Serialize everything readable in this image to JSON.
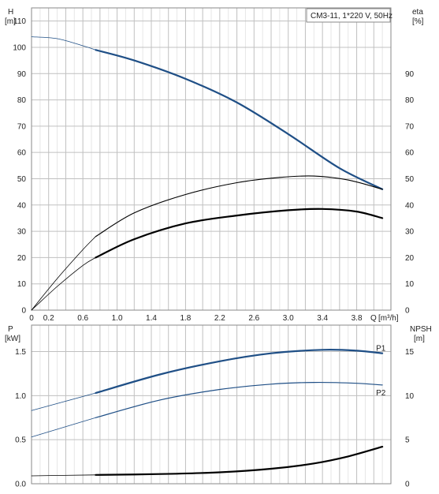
{
  "title_box": "CM3-11, 1*220 V, 50Hz",
  "colors": {
    "blue": "#1f4f86",
    "black": "#000000",
    "grid": "#c8c8c8",
    "frame": "#8a8a8a"
  },
  "chart_data": [
    {
      "type": "line",
      "name": "top",
      "left_axis": {
        "label_top": "H",
        "label_unit": "[m]",
        "ylim": [
          0,
          115
        ],
        "ticks": [
          0,
          10,
          20,
          30,
          40,
          50,
          60,
          70,
          80,
          90,
          100,
          110
        ]
      },
      "right_axis": {
        "label_top": "eta",
        "label_unit": "[%]",
        "ylim": [
          0,
          115
        ],
        "ticks": [
          0,
          10,
          20,
          30,
          40,
          50,
          60,
          70,
          80,
          90
        ]
      },
      "x_axis": {
        "label": "Q [m³/h]",
        "xlim": [
          0,
          4.2
        ],
        "ticks": [
          "0",
          "0.2",
          "0.6",
          "1.0",
          "1.4",
          "1.8",
          "2.2",
          "2.6",
          "3.0",
          "3.4",
          "3.8"
        ],
        "tick_values": [
          0,
          0.2,
          0.6,
          1.0,
          1.4,
          1.8,
          2.2,
          2.6,
          3.0,
          3.4,
          3.8
        ],
        "end_label": "Q"
      },
      "series": [
        {
          "id": "H-thin",
          "axis": "left",
          "x": [
            0,
            0.3,
            0.6,
            0.75
          ],
          "y": [
            104,
            103.3,
            100.6,
            99
          ]
        },
        {
          "id": "H",
          "axis": "left",
          "x": [
            0.75,
            1.2,
            1.8,
            2.4,
            3.0,
            3.6,
            4.1
          ],
          "y": [
            99,
            95,
            88,
            79,
            67,
            54,
            46
          ]
        },
        {
          "id": "eta-1-thin",
          "axis": "right",
          "x": [
            0,
            0.3,
            0.6,
            0.75
          ],
          "y": [
            0,
            12,
            23,
            28
          ]
        },
        {
          "id": "eta-1",
          "axis": "right",
          "x": [
            0.75,
            1.2,
            1.8,
            2.4,
            2.9,
            3.3,
            3.7,
            4.1
          ],
          "y": [
            28,
            37,
            44,
            48.5,
            50.5,
            51,
            49.5,
            46
          ]
        },
        {
          "id": "eta-2-thin",
          "axis": "right",
          "x": [
            0,
            0.3,
            0.6,
            0.75
          ],
          "y": [
            0,
            9,
            17,
            20
          ]
        },
        {
          "id": "eta-2",
          "axis": "right",
          "x": [
            0.75,
            1.2,
            1.8,
            2.4,
            3.0,
            3.4,
            3.8,
            4.1
          ],
          "y": [
            20,
            27,
            33,
            36,
            38,
            38.5,
            37.5,
            35
          ]
        }
      ]
    },
    {
      "type": "line",
      "name": "bottom",
      "left_axis": {
        "label_top": "P",
        "label_unit": "[kW]",
        "ylim": [
          0,
          1.8
        ],
        "ticks": [
          "0.0",
          "0.5",
          "1.0",
          "1.5"
        ],
        "tick_values": [
          0,
          0.5,
          1.0,
          1.5
        ]
      },
      "right_axis": {
        "label_top": "NPSH",
        "label_unit": "[m]",
        "ylim": [
          0,
          18
        ],
        "ticks": [
          "0",
          "5",
          "10",
          "15"
        ],
        "tick_values": [
          0,
          5,
          10,
          15
        ]
      },
      "series": [
        {
          "id": "P1-thin",
          "axis": "left",
          "label": "",
          "x": [
            0,
            0.75
          ],
          "y": [
            0.83,
            1.03
          ]
        },
        {
          "id": "P1",
          "axis": "left",
          "label": "P1",
          "x": [
            0.75,
            1.5,
            2.2,
            2.8,
            3.4,
            3.8,
            4.1
          ],
          "y": [
            1.03,
            1.24,
            1.39,
            1.48,
            1.52,
            1.51,
            1.48
          ]
        },
        {
          "id": "P2-thin",
          "axis": "left",
          "label": "",
          "x": [
            0,
            0.75
          ],
          "y": [
            0.53,
            0.75
          ]
        },
        {
          "id": "P2",
          "axis": "left",
          "label": "P2",
          "x": [
            0.75,
            1.5,
            2.2,
            2.8,
            3.3,
            3.8,
            4.1
          ],
          "y": [
            0.75,
            0.95,
            1.07,
            1.13,
            1.15,
            1.14,
            1.12
          ]
        },
        {
          "id": "NPSH-thin",
          "axis": "right",
          "label": "",
          "x": [
            0,
            0.75
          ],
          "y": [
            0.9,
            1.0
          ]
        },
        {
          "id": "NPSH",
          "axis": "right",
          "label": "",
          "x": [
            0.75,
            1.5,
            2.2,
            2.8,
            3.3,
            3.7,
            4.1
          ],
          "y": [
            1.0,
            1.1,
            1.3,
            1.7,
            2.3,
            3.1,
            4.2
          ]
        }
      ]
    }
  ]
}
